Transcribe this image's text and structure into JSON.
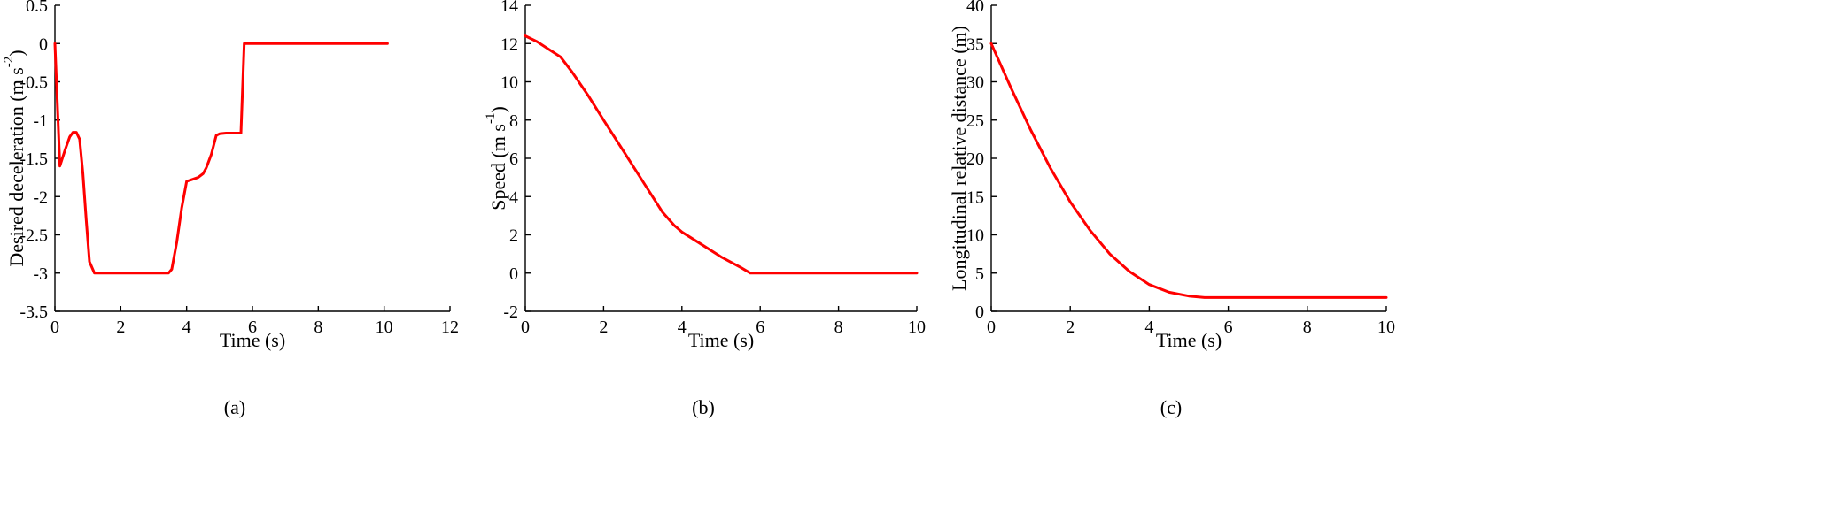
{
  "colors": {
    "series": "#ff0000",
    "axis": "#000000"
  },
  "chart_data": [
    {
      "panel_label": "(a)",
      "type": "line",
      "xlabel": "Time (s)",
      "ylabel": "Desired deceleration (m s",
      "ylabel_sup": "-2",
      "ylabel_suffix": ")",
      "xlim": [
        0,
        12
      ],
      "ylim": [
        -3.5,
        0.5
      ],
      "xticks": [
        0,
        2,
        4,
        6,
        8,
        10,
        12
      ],
      "yticks": [
        -3.5,
        -3,
        -2.5,
        -2,
        -1.5,
        -1,
        -0.5,
        0,
        0.5
      ],
      "grid": false,
      "series": [
        {
          "x": [
            0,
            0.15,
            0.3,
            0.45,
            0.55,
            0.65,
            0.75,
            0.85,
            0.95,
            1.05,
            1.2,
            2.0,
            3.0,
            3.45,
            3.55,
            3.7,
            3.85,
            4.0,
            4.15,
            4.35,
            4.5,
            4.6,
            4.75,
            4.9,
            5.0,
            5.2,
            5.5,
            5.65,
            5.75,
            7.0,
            8.5,
            10.1
          ],
          "y": [
            0,
            -1.6,
            -1.4,
            -1.22,
            -1.16,
            -1.16,
            -1.25,
            -1.7,
            -2.3,
            -2.85,
            -3.0,
            -3.0,
            -3.0,
            -3.0,
            -2.95,
            -2.6,
            -2.15,
            -1.8,
            -1.78,
            -1.75,
            -1.7,
            -1.62,
            -1.45,
            -1.2,
            -1.18,
            -1.17,
            -1.17,
            -1.17,
            0,
            0,
            0,
            0
          ]
        }
      ]
    },
    {
      "panel_label": "(b)",
      "type": "line",
      "xlabel": "Time (s)",
      "ylabel": "Speed (m s",
      "ylabel_sup": "-1",
      "ylabel_suffix": ")",
      "xlim": [
        0,
        10
      ],
      "ylim": [
        -2,
        14
      ],
      "xticks": [
        0,
        2,
        4,
        6,
        8,
        10
      ],
      "yticks": [
        -2,
        0,
        2,
        4,
        6,
        8,
        10,
        12,
        14
      ],
      "grid": false,
      "series": [
        {
          "x": [
            0,
            0.3,
            0.6,
            0.9,
            1.2,
            1.6,
            2.0,
            2.5,
            3.0,
            3.5,
            3.8,
            4.0,
            4.5,
            5.0,
            5.5,
            5.75,
            6.0,
            7.0,
            8.0,
            9.0,
            10.0
          ],
          "y": [
            12.4,
            12.1,
            11.7,
            11.3,
            10.5,
            9.3,
            8.0,
            6.4,
            4.8,
            3.2,
            2.5,
            2.15,
            1.5,
            0.85,
            0.3,
            0.0,
            0.0,
            0.0,
            0.0,
            0.0,
            0.0
          ]
        }
      ]
    },
    {
      "panel_label": "(c)",
      "type": "line",
      "xlabel": "Time (s)",
      "ylabel": "Longitudinal relative distance (m)",
      "ylabel_sup": "",
      "ylabel_suffix": "",
      "xlim": [
        0,
        10
      ],
      "ylim": [
        0,
        40
      ],
      "xticks": [
        0,
        2,
        4,
        6,
        8,
        10
      ],
      "yticks": [
        0,
        5,
        10,
        15,
        20,
        25,
        30,
        35,
        40
      ],
      "grid": false,
      "series": [
        {
          "x": [
            0,
            0.5,
            1.0,
            1.5,
            2.0,
            2.5,
            3.0,
            3.5,
            4.0,
            4.5,
            5.0,
            5.4,
            6.0,
            7.0,
            8.0,
            9.0,
            10.0
          ],
          "y": [
            35.0,
            29.2,
            23.7,
            18.7,
            14.3,
            10.6,
            7.5,
            5.2,
            3.5,
            2.5,
            2.0,
            1.8,
            1.8,
            1.8,
            1.8,
            1.8,
            1.8
          ]
        }
      ]
    }
  ]
}
